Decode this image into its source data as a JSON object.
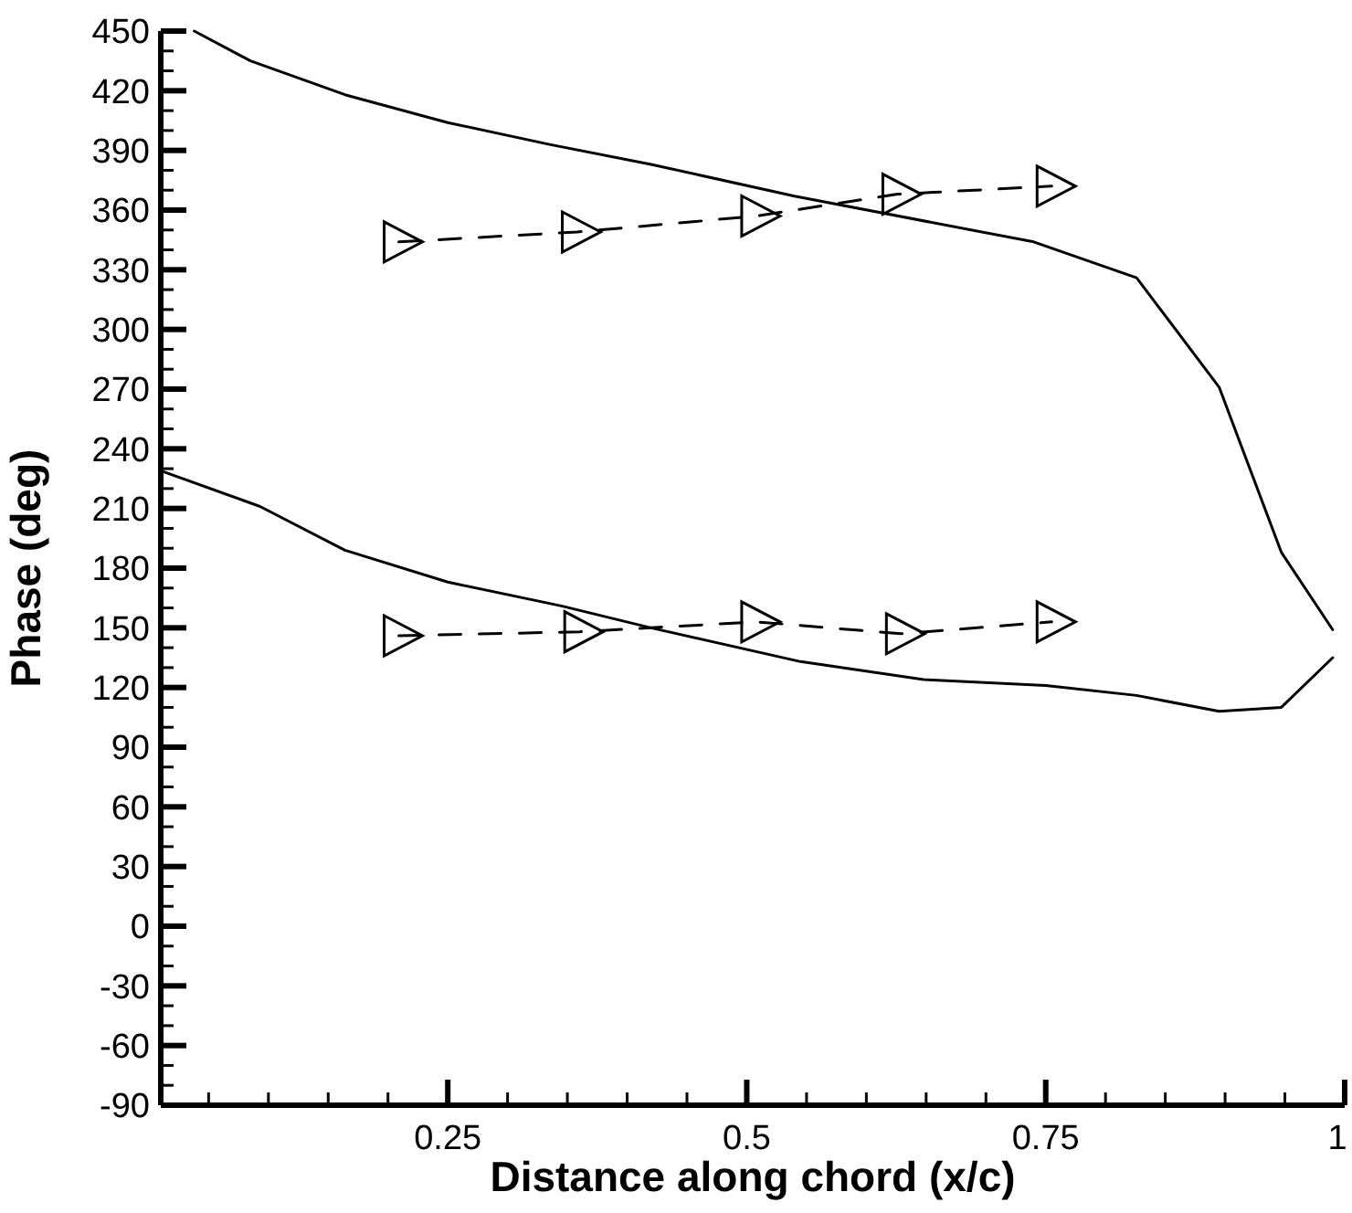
{
  "chart_data": {
    "type": "line",
    "xlabel": "Distance along chord (x/c)",
    "ylabel": "Phase (deg)",
    "xlim": [
      0.01,
      1
    ],
    "ylim": [
      -90,
      450
    ],
    "xticks": [
      {
        "value": 0.05,
        "label": null
      },
      {
        "value": 0.1,
        "label": null
      },
      {
        "value": 0.15,
        "label": null
      },
      {
        "value": 0.2,
        "label": null
      },
      0.25,
      {
        "value": 0.3,
        "label": null
      },
      {
        "value": 0.35,
        "label": null
      },
      {
        "value": 0.4,
        "label": null
      },
      {
        "value": 0.45,
        "label": null
      },
      0.5,
      {
        "value": 0.55,
        "label": null
      },
      {
        "value": 0.6,
        "label": null
      },
      {
        "value": 0.65,
        "label": null
      },
      {
        "value": 0.7,
        "label": null
      },
      0.75,
      {
        "value": 0.8,
        "label": null
      },
      {
        "value": 0.85,
        "label": null
      },
      {
        "value": 0.9,
        "label": null
      },
      {
        "value": 0.95,
        "label": null
      },
      1
    ],
    "yticks": [
      -90,
      {
        "value": -80,
        "label": null
      },
      {
        "value": -70,
        "label": null
      },
      -60,
      {
        "value": -50,
        "label": null
      },
      {
        "value": -40,
        "label": null
      },
      -30,
      {
        "value": -20,
        "label": null
      },
      {
        "value": -10,
        "label": null
      },
      0,
      {
        "value": 10,
        "label": null
      },
      {
        "value": 20,
        "label": null
      },
      30,
      {
        "value": 40,
        "label": null
      },
      {
        "value": 50,
        "label": null
      },
      60,
      {
        "value": 70,
        "label": null
      },
      {
        "value": 80,
        "label": null
      },
      90,
      {
        "value": 100,
        "label": null
      },
      {
        "value": 110,
        "label": null
      },
      120,
      {
        "value": 130,
        "label": null
      },
      {
        "value": 140,
        "label": null
      },
      150,
      {
        "value": 160,
        "label": null
      },
      {
        "value": 170,
        "label": null
      },
      180,
      {
        "value": 190,
        "label": null
      },
      {
        "value": 200,
        "label": null
      },
      210,
      {
        "value": 220,
        "label": null
      },
      {
        "value": 230,
        "label": null
      },
      240,
      {
        "value": 250,
        "label": null
      },
      {
        "value": 260,
        "label": null
      },
      270,
      {
        "value": 280,
        "label": null
      },
      {
        "value": 290,
        "label": null
      },
      300,
      {
        "value": 310,
        "label": null
      },
      {
        "value": 320,
        "label": null
      },
      330,
      {
        "value": 340,
        "label": null
      },
      {
        "value": 350,
        "label": null
      },
      360,
      {
        "value": 370,
        "label": null
      },
      {
        "value": 380,
        "label": null
      },
      390,
      {
        "value": 400,
        "label": null
      },
      {
        "value": 410,
        "label": null
      },
      420,
      {
        "value": 430,
        "label": null
      },
      {
        "value": 440,
        "label": null
      },
      450
    ],
    "grid": false,
    "series": [
      {
        "color": "#000000",
        "marker": "none",
        "line_style": "solid",
        "x": [
          0.038,
          0.085,
          0.164,
          0.25,
          0.335,
          0.42,
          0.54,
          0.74,
          0.826,
          0.895,
          0.947,
          0.99
        ],
        "values": [
          450,
          435,
          418,
          404,
          393,
          383,
          367,
          344,
          326,
          271,
          188,
          149
        ]
      },
      {
        "color": "#000000",
        "marker": "none",
        "line_style": "solid",
        "x": [
          0.01,
          0.093,
          0.164,
          0.25,
          0.345,
          0.42,
          0.545,
          0.648,
          0.75,
          0.826,
          0.895,
          0.947,
          0.99
        ],
        "values": [
          229,
          211,
          189,
          173,
          161,
          150,
          133,
          124,
          121,
          116,
          108,
          110,
          135
        ]
      },
      {
        "color": "#000000",
        "marker": "triangle",
        "line_style": "dashed",
        "x": [
          0.209,
          0.358,
          0.508,
          0.626,
          0.755
        ],
        "values": [
          344,
          349,
          357,
          368,
          372
        ]
      },
      {
        "color": "#000000",
        "marker": "triangle",
        "line_style": "dashed",
        "x": [
          0.209,
          0.36,
          0.508,
          0.629,
          0.755
        ],
        "values": [
          146,
          148,
          153,
          147,
          153
        ]
      }
    ]
  }
}
